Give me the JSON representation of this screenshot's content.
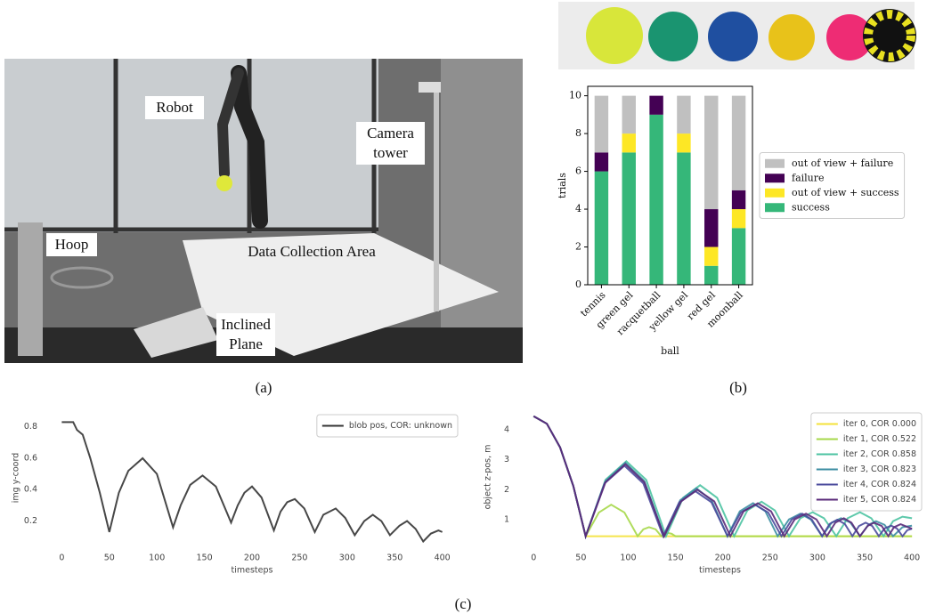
{
  "photo": {
    "robot": "Robot",
    "camera_tower": "Camera tower",
    "hoop": "Hoop",
    "data_collection_area": "Data Collection Area",
    "inclined_plane": "Inclined Plane"
  },
  "captions": [
    "(a)",
    "(b)",
    "(c)"
  ],
  "chart_data": [
    {
      "type": "bar",
      "stacked": true,
      "categories": [
        "tennis",
        "green gel",
        "racquetball",
        "yellow gel",
        "red gel",
        "moonball"
      ],
      "series": [
        {
          "name": "success",
          "color": "#35b779",
          "values": [
            6,
            7,
            9,
            7,
            1,
            3
          ]
        },
        {
          "name": "out of view + success",
          "color": "#fde725",
          "values": [
            0,
            1,
            0,
            1,
            1,
            1
          ]
        },
        {
          "name": "failure",
          "color": "#440154",
          "values": [
            1,
            0,
            1,
            0,
            2,
            1
          ]
        },
        {
          "name": "out of view + failure",
          "color": "#c0c0c0",
          "values": [
            3,
            2,
            0,
            2,
            6,
            5
          ]
        }
      ],
      "ylim": [
        0,
        10.5
      ],
      "yticks": [
        0,
        2,
        4,
        6,
        8,
        10
      ],
      "xlabel": "ball",
      "ylabel": "trials",
      "legend": "right"
    },
    {
      "type": "line",
      "x": [
        0,
        12,
        16,
        22,
        30,
        40,
        50,
        60,
        70,
        85,
        100,
        117,
        125,
        135,
        148,
        162,
        178,
        185,
        192,
        200,
        210,
        223,
        230,
        237,
        245,
        255,
        266,
        275,
        288,
        298,
        308,
        318,
        327,
        336,
        345,
        355,
        363,
        372,
        380,
        388,
        396,
        400
      ],
      "series": [
        {
          "name": "blob pos, COR: unknown",
          "color": "#333333",
          "values": [
            0.83,
            0.83,
            0.78,
            0.75,
            0.6,
            0.38,
            0.13,
            0.38,
            0.52,
            0.6,
            0.5,
            0.16,
            0.3,
            0.43,
            0.49,
            0.42,
            0.19,
            0.3,
            0.38,
            0.42,
            0.35,
            0.14,
            0.26,
            0.32,
            0.34,
            0.28,
            0.13,
            0.24,
            0.28,
            0.22,
            0.11,
            0.2,
            0.24,
            0.2,
            0.11,
            0.17,
            0.2,
            0.15,
            0.07,
            0.12,
            0.14,
            0.13
          ]
        }
      ],
      "xlim": [
        -20,
        420
      ],
      "xticks": [
        0,
        50,
        100,
        150,
        200,
        250,
        300,
        350,
        400
      ],
      "ylim": [
        0.05,
        0.9
      ],
      "yticks": [
        0.2,
        0.4,
        0.6,
        0.8
      ],
      "xlabel": "timesteps",
      "ylabel": "img y-coord",
      "legend": "upper right"
    },
    {
      "type": "line",
      "series": [
        {
          "name": "iter 0, COR 0.000",
          "color": "#f4e23a",
          "x": [
            0,
            14,
            28,
            42,
            55,
            400
          ],
          "values": [
            4.45,
            4.2,
            3.41,
            2.12,
            0.45,
            0.45
          ]
        },
        {
          "name": "iter 1, COR 0.522",
          "color": "#a6d84a",
          "x": [
            0,
            14,
            28,
            42,
            55,
            69,
            82,
            96,
            110,
            116,
            122,
            129,
            135,
            139,
            143,
            146,
            150,
            400
          ],
          "values": [
            4.45,
            4.2,
            3.41,
            2.12,
            0.45,
            1.24,
            1.5,
            1.24,
            0.45,
            0.68,
            0.75,
            0.68,
            0.45,
            0.53,
            0.55,
            0.53,
            0.45,
            0.45
          ]
        },
        {
          "name": "iter 2, COR 0.858",
          "color": "#4cc3a2",
          "x": [
            0,
            14,
            28,
            42,
            55,
            76,
            98,
            119,
            140,
            158,
            176,
            194,
            212,
            226,
            241,
            255,
            270,
            282,
            295,
            307,
            320,
            332,
            345,
            357,
            370,
            380,
            390,
            400
          ],
          "values": [
            4.45,
            4.2,
            3.41,
            2.12,
            0.45,
            2.33,
            2.95,
            2.33,
            0.45,
            1.73,
            2.15,
            1.73,
            0.45,
            1.31,
            1.6,
            1.31,
            0.45,
            1.05,
            1.25,
            1.05,
            0.45,
            1.05,
            1.25,
            1.05,
            0.45,
            0.95,
            1.1,
            1.05
          ]
        },
        {
          "name": "iter 3, COR 0.823",
          "color": "#3d8ea3",
          "x": [
            0,
            14,
            28,
            42,
            55,
            76,
            97,
            117,
            138,
            155,
            172,
            188,
            205,
            218,
            232,
            245,
            258,
            270,
            282,
            293,
            305,
            315,
            325,
            335,
            345,
            354,
            362,
            371,
            380,
            390,
            400
          ],
          "values": [
            4.45,
            4.2,
            3.41,
            2.12,
            0.45,
            2.29,
            2.9,
            2.29,
            0.45,
            1.65,
            2.05,
            1.65,
            0.45,
            1.28,
            1.55,
            1.28,
            0.45,
            1.01,
            1.2,
            1.01,
            0.45,
            0.9,
            1.05,
            0.9,
            0.45,
            0.83,
            0.95,
            0.83,
            0.45,
            0.75,
            0.8
          ]
        },
        {
          "name": "iter 4, COR 0.824",
          "color": "#4a4a9c",
          "x": [
            0,
            14,
            28,
            42,
            55,
            75,
            96,
            116,
            137,
            154,
            171,
            188,
            205,
            219,
            234,
            248,
            262,
            273,
            284,
            294,
            305,
            313,
            321,
            329,
            337,
            344,
            351,
            358,
            365,
            371,
            378,
            384,
            390,
            395,
            400
          ],
          "values": [
            4.45,
            4.2,
            3.41,
            2.12,
            0.45,
            2.21,
            2.8,
            2.21,
            0.45,
            1.58,
            1.95,
            1.58,
            0.45,
            1.24,
            1.5,
            1.24,
            0.45,
            1.01,
            1.2,
            1.01,
            0.45,
            0.86,
            1.0,
            0.86,
            0.45,
            0.79,
            0.9,
            0.79,
            0.45,
            0.71,
            0.8,
            0.71,
            0.45,
            0.65,
            0.7
          ]
        },
        {
          "name": "iter 5, COR 0.824",
          "color": "#5a2a7a",
          "x": [
            0,
            14,
            28,
            42,
            55,
            76,
            97,
            117,
            138,
            156,
            173,
            191,
            208,
            222,
            237,
            251,
            265,
            276,
            288,
            299,
            310,
            319,
            328,
            336,
            345,
            353,
            360,
            368,
            375,
            381,
            388,
            400
          ],
          "values": [
            4.45,
            4.2,
            3.41,
            2.12,
            0.45,
            2.25,
            2.85,
            2.25,
            0.45,
            1.61,
            2.0,
            1.61,
            0.45,
            1.28,
            1.55,
            1.28,
            0.45,
            1.01,
            1.2,
            1.01,
            0.45,
            0.9,
            1.05,
            0.9,
            0.45,
            0.79,
            0.9,
            0.79,
            0.45,
            0.75,
            0.85,
            0.7
          ]
        }
      ],
      "xlim": [
        -20,
        414
      ],
      "xticks": [
        0,
        50,
        100,
        150,
        200,
        250,
        300,
        350,
        400
      ],
      "ylim": [
        0.17,
        4.68
      ],
      "yticks": [
        1,
        2,
        3,
        4
      ],
      "xlabel": "timesteps",
      "ylabel": "object z-pos, m",
      "legend": "upper right"
    }
  ]
}
